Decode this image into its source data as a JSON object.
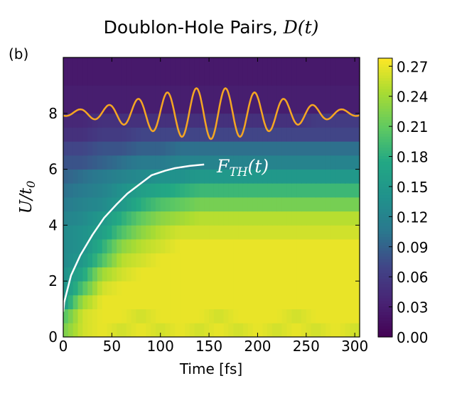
{
  "panel_label": "(b)",
  "chart_data": {
    "type": "heatmap",
    "title_text": "Doublon-Hole Pairs, ",
    "title_math": "D(t)",
    "xlabel": "Time [fs]",
    "ylabel_math": "U/t",
    "ylabel_sub": "0",
    "xlim": [
      0,
      305
    ],
    "ylim": [
      0,
      10
    ],
    "xticks": [
      0,
      50,
      100,
      150,
      200,
      250,
      300
    ],
    "yticks": [
      0,
      2,
      4,
      6,
      8
    ],
    "colormap": "viridis",
    "colorbar": {
      "range": [
        0,
        0.278
      ],
      "ticks": [
        "0.00",
        "0.03",
        "0.06",
        "0.09",
        "0.12",
        "0.15",
        "0.18",
        "0.21",
        "0.24",
        "0.27"
      ]
    },
    "heatmap": {
      "t": [
        0,
        20,
        40,
        60,
        80,
        100,
        120,
        140,
        160,
        180,
        200,
        220,
        240,
        260,
        280,
        300
      ],
      "U": [
        0.25,
        0.75,
        1.25,
        1.75,
        2.25,
        2.75,
        3.25,
        3.75,
        4.25,
        4.75,
        5.25,
        5.75,
        6.25,
        6.75,
        7.25,
        7.75,
        8.25,
        8.75,
        9.25,
        9.75
      ],
      "D": [
        [
          0.22,
          0.26,
          0.27,
          0.26,
          0.27,
          0.26,
          0.27,
          0.26,
          0.27,
          0.26,
          0.27,
          0.26,
          0.27,
          0.26,
          0.27,
          0.26
        ],
        [
          0.2,
          0.26,
          0.27,
          0.27,
          0.26,
          0.27,
          0.27,
          0.27,
          0.26,
          0.27,
          0.27,
          0.27,
          0.26,
          0.27,
          0.27,
          0.27
        ],
        [
          0.15,
          0.24,
          0.27,
          0.27,
          0.27,
          0.27,
          0.27,
          0.27,
          0.27,
          0.27,
          0.27,
          0.27,
          0.27,
          0.27,
          0.27,
          0.27
        ],
        [
          0.14,
          0.2,
          0.26,
          0.27,
          0.27,
          0.27,
          0.27,
          0.27,
          0.27,
          0.27,
          0.27,
          0.27,
          0.27,
          0.27,
          0.27,
          0.27
        ],
        [
          0.14,
          0.17,
          0.24,
          0.26,
          0.27,
          0.27,
          0.27,
          0.27,
          0.27,
          0.27,
          0.27,
          0.27,
          0.27,
          0.27,
          0.27,
          0.27
        ],
        [
          0.13,
          0.15,
          0.2,
          0.25,
          0.26,
          0.27,
          0.27,
          0.27,
          0.27,
          0.27,
          0.27,
          0.27,
          0.27,
          0.27,
          0.27,
          0.27
        ],
        [
          0.13,
          0.14,
          0.18,
          0.23,
          0.25,
          0.26,
          0.27,
          0.27,
          0.27,
          0.27,
          0.27,
          0.27,
          0.27,
          0.27,
          0.27,
          0.27
        ],
        [
          0.13,
          0.14,
          0.16,
          0.2,
          0.23,
          0.25,
          0.26,
          0.26,
          0.26,
          0.26,
          0.26,
          0.26,
          0.26,
          0.26,
          0.26,
          0.26
        ],
        [
          0.12,
          0.13,
          0.15,
          0.18,
          0.21,
          0.23,
          0.24,
          0.25,
          0.25,
          0.25,
          0.25,
          0.25,
          0.25,
          0.25,
          0.25,
          0.25
        ],
        [
          0.11,
          0.12,
          0.13,
          0.15,
          0.18,
          0.2,
          0.21,
          0.22,
          0.22,
          0.22,
          0.22,
          0.22,
          0.22,
          0.22,
          0.22,
          0.22
        ],
        [
          0.1,
          0.11,
          0.12,
          0.14,
          0.16,
          0.17,
          0.18,
          0.19,
          0.19,
          0.19,
          0.19,
          0.19,
          0.19,
          0.19,
          0.19,
          0.19
        ],
        [
          0.09,
          0.1,
          0.11,
          0.12,
          0.13,
          0.14,
          0.14,
          0.15,
          0.15,
          0.15,
          0.15,
          0.15,
          0.15,
          0.15,
          0.15,
          0.15
        ],
        [
          0.08,
          0.08,
          0.09,
          0.1,
          0.11,
          0.11,
          0.12,
          0.12,
          0.12,
          0.12,
          0.12,
          0.12,
          0.12,
          0.12,
          0.12,
          0.12
        ],
        [
          0.07,
          0.07,
          0.08,
          0.08,
          0.09,
          0.09,
          0.1,
          0.1,
          0.1,
          0.1,
          0.1,
          0.1,
          0.1,
          0.1,
          0.1,
          0.1
        ],
        [
          0.05,
          0.05,
          0.06,
          0.06,
          0.07,
          0.07,
          0.07,
          0.07,
          0.07,
          0.07,
          0.07,
          0.07,
          0.07,
          0.07,
          0.07,
          0.07
        ],
        [
          0.04,
          0.04,
          0.05,
          0.05,
          0.05,
          0.05,
          0.05,
          0.05,
          0.05,
          0.05,
          0.05,
          0.05,
          0.05,
          0.06,
          0.06,
          0.06
        ],
        [
          0.03,
          0.03,
          0.03,
          0.03,
          0.03,
          0.03,
          0.03,
          0.03,
          0.03,
          0.03,
          0.03,
          0.03,
          0.03,
          0.03,
          0.03,
          0.03
        ],
        [
          0.03,
          0.03,
          0.03,
          0.03,
          0.03,
          0.03,
          0.03,
          0.03,
          0.03,
          0.03,
          0.03,
          0.03,
          0.03,
          0.03,
          0.03,
          0.03
        ],
        [
          0.025,
          0.025,
          0.025,
          0.025,
          0.025,
          0.025,
          0.025,
          0.025,
          0.025,
          0.025,
          0.025,
          0.025,
          0.025,
          0.025,
          0.025,
          0.025
        ],
        [
          0.025,
          0.025,
          0.025,
          0.025,
          0.025,
          0.025,
          0.025,
          0.025,
          0.025,
          0.025,
          0.025,
          0.025,
          0.025,
          0.025,
          0.025,
          0.025
        ]
      ]
    },
    "pulse_curve": {
      "color": "#f5a623",
      "baseline_U": 8,
      "peak_amplitude_U": 0.92,
      "center_fs": 152,
      "envelope_sigma_fs": 70,
      "period_fs": 30
    },
    "fth_curve": {
      "label_math": "F",
      "label_sub": "TH",
      "label_suffix": "(t)",
      "color": "#ffffff",
      "t": [
        0,
        1,
        8,
        17.5,
        30,
        42,
        55,
        66,
        80,
        91,
        105,
        115,
        130,
        145
      ],
      "U": [
        0.9,
        1.25,
        2.2,
        2.92,
        3.65,
        4.26,
        4.75,
        5.13,
        5.5,
        5.79,
        5.95,
        6.04,
        6.12,
        6.17
      ]
    }
  }
}
